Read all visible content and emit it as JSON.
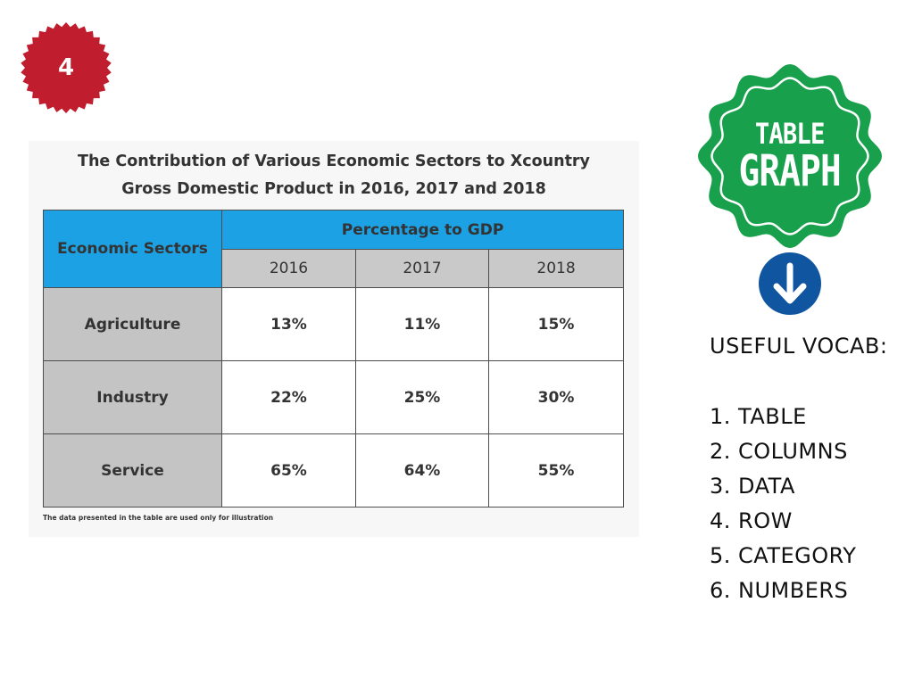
{
  "slide_number": "4",
  "colors": {
    "badge_red": "#c01d2e",
    "seal_green": "#18a04c",
    "arrow_blue": "#0f55a0",
    "header_blue": "#1ca1e4",
    "header_gray": "#c9c9c9",
    "row_gray": "#c4c4c4"
  },
  "badge": {
    "line1": "TABLE",
    "line2": "GRAPH"
  },
  "arrow_icon": "arrow-down-icon",
  "vocab": {
    "title": "USEFUL VOCAB:",
    "items": [
      "1. TABLE",
      "2. COLUMNS",
      "3. DATA",
      "4. ROW",
      "5. CATEGORY",
      "6. NUMBERS"
    ]
  },
  "chart_data": {
    "type": "table",
    "title": "The Contribution of Various Economic Sectors to Xcountry Gross Domestic Product in 2016, 2017 and 2018",
    "title_lines": [
      "The Contribution of Various Economic Sectors to Xcountry",
      "Gross Domestic Product in 2016, 2017 and 2018"
    ],
    "row_header": "Economic Sectors",
    "column_group_header": "Percentage to GDP",
    "columns": [
      "2016",
      "2017",
      "2018"
    ],
    "rows": [
      {
        "category": "Agriculture",
        "values": [
          "13%",
          "11%",
          "15%"
        ]
      },
      {
        "category": "Industry",
        "values": [
          "22%",
          "25%",
          "30%"
        ]
      },
      {
        "category": "Service",
        "values": [
          "65%",
          "64%",
          "55%"
        ]
      }
    ],
    "footnote": "The data presented in the table are used only for illustration"
  }
}
